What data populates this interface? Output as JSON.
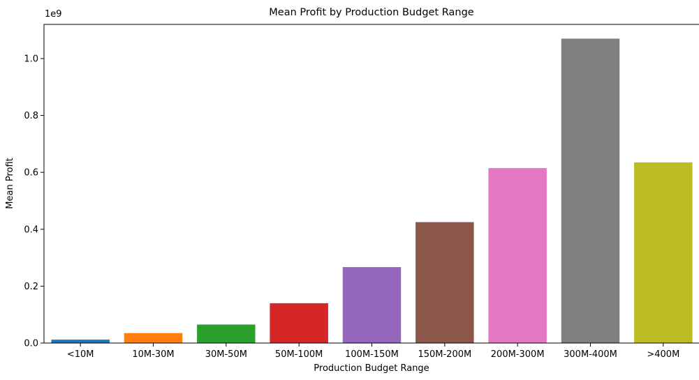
{
  "chart_data": {
    "type": "bar",
    "title": "Mean Profit by Production Budget Range",
    "xlabel": "Production Budget Range",
    "ylabel": "Mean Profit",
    "y_scale_label": "1e9",
    "y_multiplier": 1000000000,
    "categories": [
      "<10M",
      "10M-30M",
      "30M-50M",
      "50M-100M",
      "100M-150M",
      "150M-200M",
      "200M-300M",
      "300M-400M",
      ">400M"
    ],
    "values": [
      12000000,
      35000000,
      65000000,
      140000000,
      267000000,
      425000000,
      615000000,
      1070000000,
      635000000
    ],
    "colors": [
      "#1f77b4",
      "#ff7f0e",
      "#2ca02c",
      "#d62728",
      "#9467bd",
      "#8c564b",
      "#e377c2",
      "#7f7f7f",
      "#bcbd22"
    ],
    "ylim": [
      0,
      1.12
    ],
    "yticks": [
      "0.0",
      "0.2",
      "0.4",
      "0.6",
      "0.8",
      "1.0"
    ],
    "grid": false,
    "legend": false
  }
}
